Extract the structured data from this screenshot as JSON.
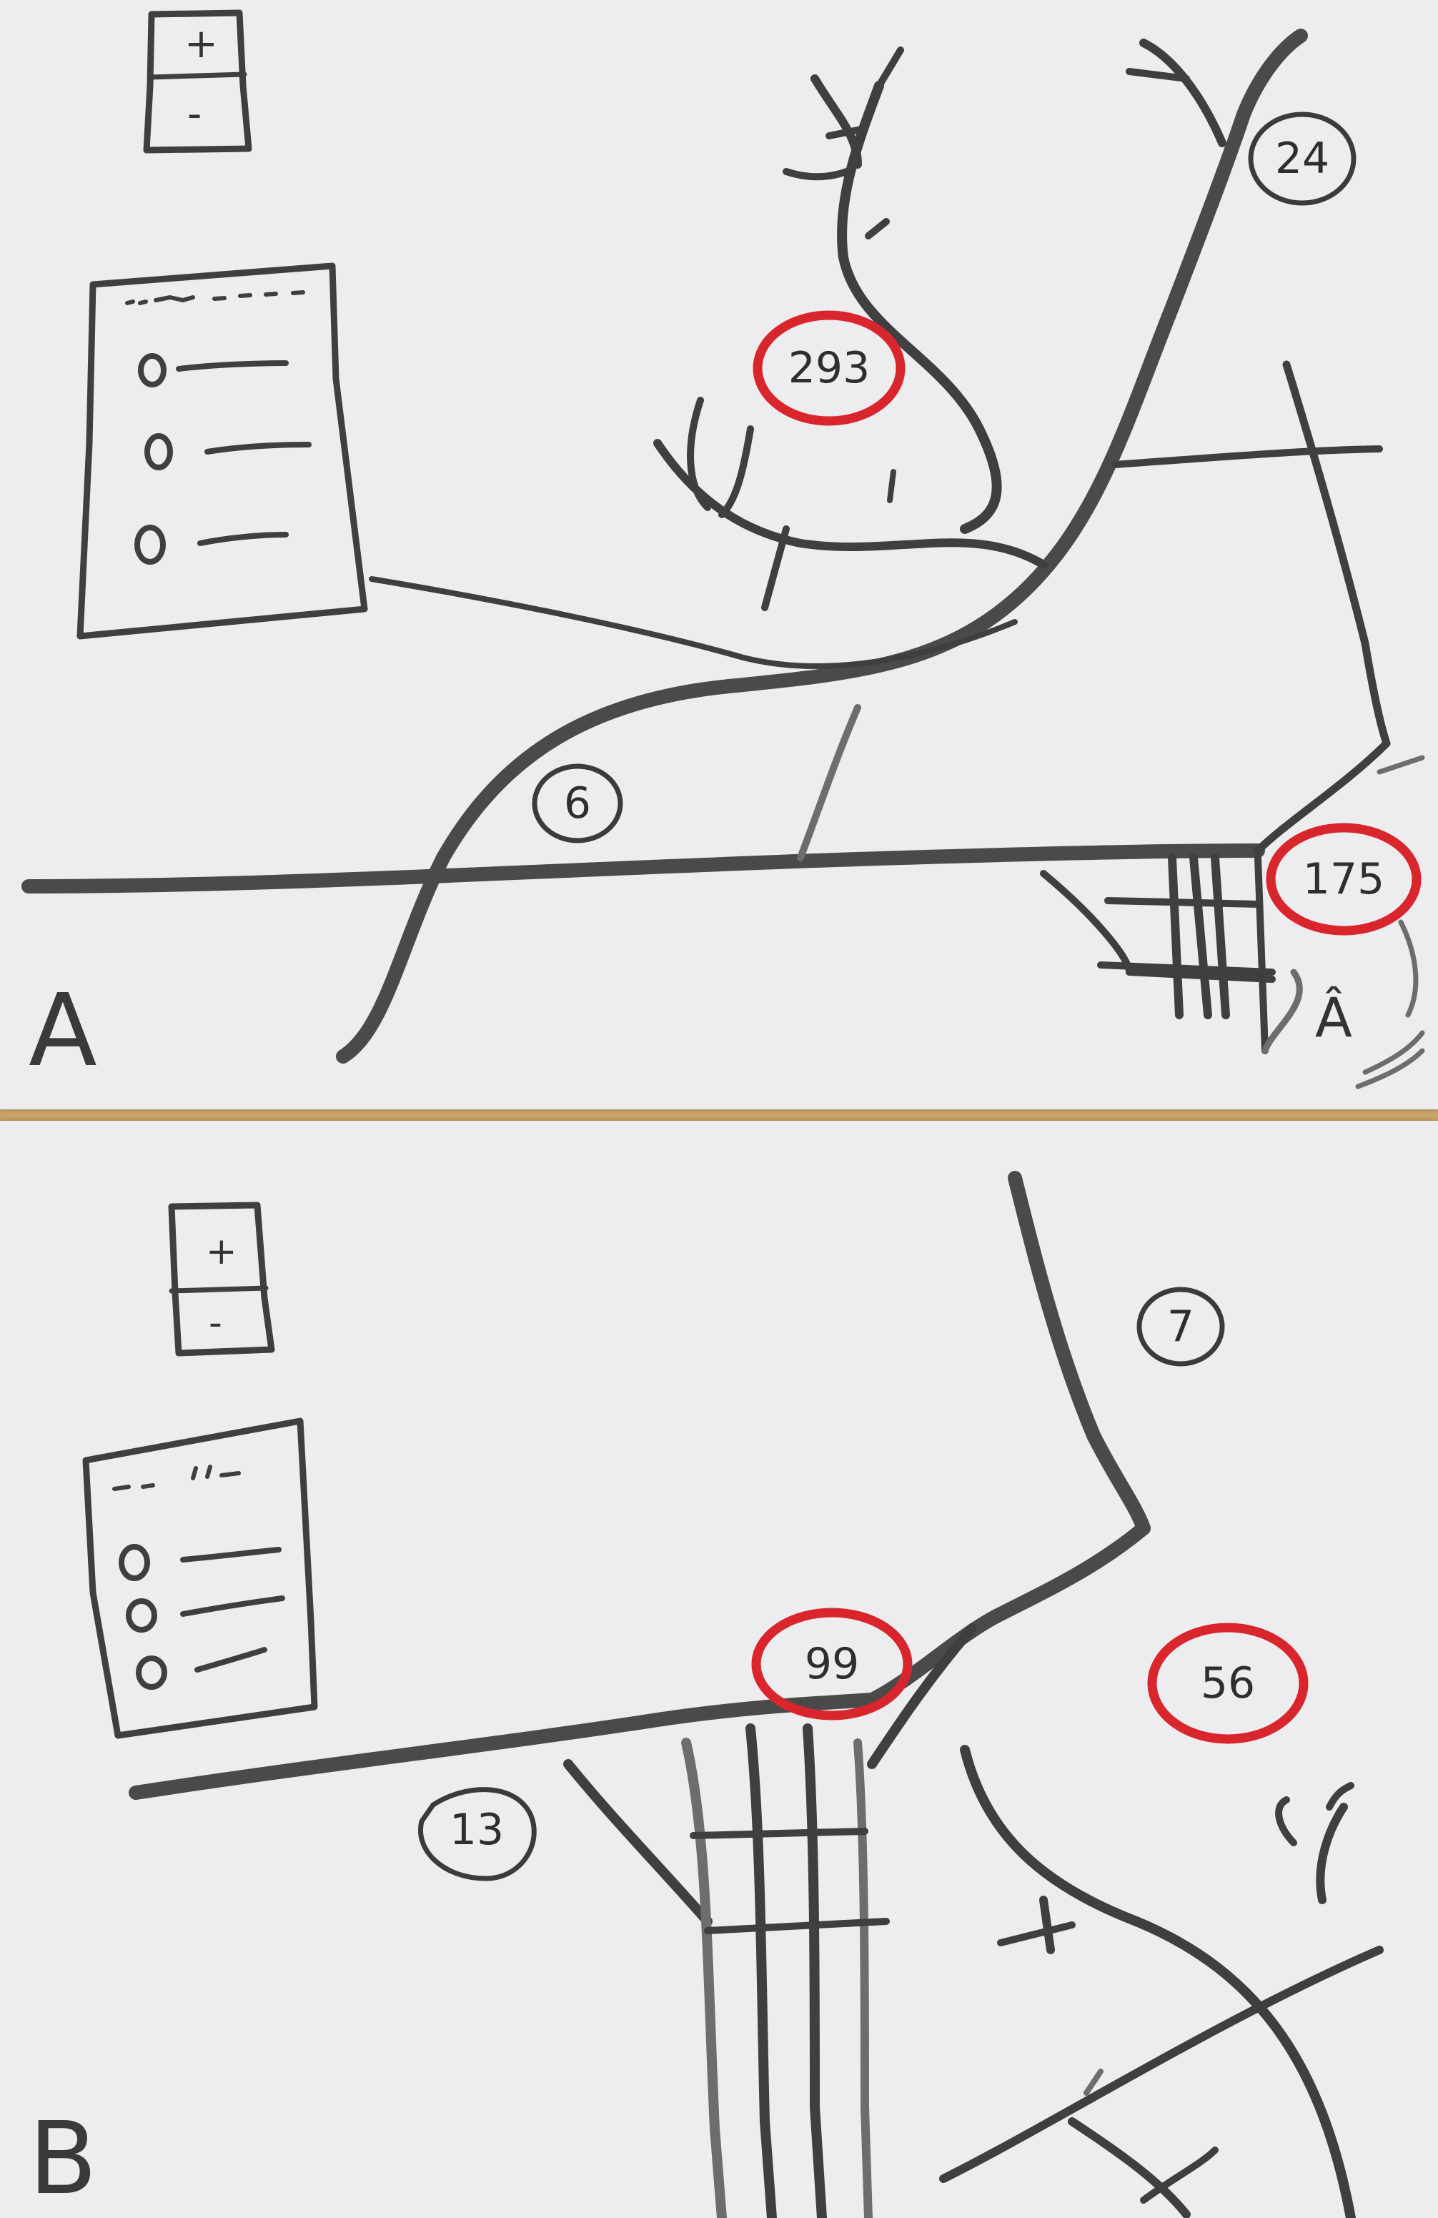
{
  "sheets": [
    {
      "label": "A",
      "zoom_control": {
        "plus": "+",
        "minus": "-"
      },
      "legend_rows": 3,
      "route_badges": [
        {
          "value": "24",
          "highlight": false
        },
        {
          "value": "293",
          "highlight": true
        },
        {
          "value": "6",
          "highlight": false
        },
        {
          "value": "175",
          "highlight": true
        }
      ],
      "location_marker": "Â"
    },
    {
      "label": "B",
      "zoom_control": {
        "plus": "+",
        "minus": "-"
      },
      "legend_rows": 3,
      "route_badges": [
        {
          "value": "7",
          "highlight": false
        },
        {
          "value": "99",
          "highlight": true
        },
        {
          "value": "56",
          "highlight": true
        },
        {
          "value": "13",
          "highlight": false
        }
      ]
    }
  ],
  "colors": {
    "paper": "#ededef",
    "ink": "#3f3f3f",
    "highlight_ring": "#d9262c",
    "table": "#c9a36a"
  }
}
